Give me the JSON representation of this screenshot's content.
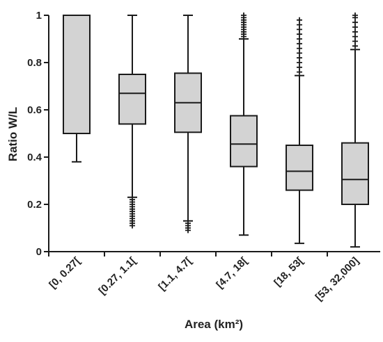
{
  "chart_data": {
    "type": "box",
    "xlabel": "Area (km²)",
    "ylabel": "Ratio W/L",
    "ylim": [
      0,
      1
    ],
    "yticks": [
      "0",
      "0.2",
      "0.4",
      "0.6",
      "0.8",
      "1"
    ],
    "yticks_values": [
      0,
      0.2,
      0.4,
      0.6,
      0.8,
      1
    ],
    "grid": false,
    "legend": "none",
    "box_color": "#d3d3d3",
    "line_color": "#1a1a1a",
    "categories": [
      "[0, 0.27[",
      "[0.27, 1.1[",
      "[1.1, 4.7[",
      "[4.7, 18[",
      "[18, 53[",
      "[53, 32,000]"
    ],
    "boxes": [
      {
        "whisker_low": 0.38,
        "q1": 0.5,
        "median": 1.0,
        "q3": 1.0,
        "whisker_high": 1.0,
        "outliers_low": [],
        "outliers_high": []
      },
      {
        "whisker_low": 0.23,
        "q1": 0.54,
        "median": 0.67,
        "q3": 0.75,
        "whisker_high": 1.0,
        "outliers_low": [
          0.11,
          0.12,
          0.13,
          0.14,
          0.15,
          0.16,
          0.17,
          0.18,
          0.19,
          0.2,
          0.21,
          0.22
        ],
        "outliers_high": []
      },
      {
        "whisker_low": 0.13,
        "q1": 0.505,
        "median": 0.63,
        "q3": 0.755,
        "whisker_high": 1.0,
        "outliers_low": [
          0.09,
          0.1,
          0.11,
          0.12
        ],
        "outliers_high": []
      },
      {
        "whisker_low": 0.07,
        "q1": 0.36,
        "median": 0.455,
        "q3": 0.575,
        "whisker_high": 0.9,
        "outliers_low": [],
        "outliers_high": [
          0.91,
          0.92,
          0.93,
          0.94,
          0.95,
          0.96,
          0.97,
          0.98,
          0.99,
          1.0
        ]
      },
      {
        "whisker_low": 0.035,
        "q1": 0.26,
        "median": 0.34,
        "q3": 0.45,
        "whisker_high": 0.745,
        "outliers_low": [],
        "outliers_high": [
          0.76,
          0.78,
          0.8,
          0.82,
          0.84,
          0.86,
          0.88,
          0.9,
          0.92,
          0.94,
          0.96,
          0.98
        ]
      },
      {
        "whisker_low": 0.02,
        "q1": 0.2,
        "median": 0.305,
        "q3": 0.46,
        "whisker_high": 0.855,
        "outliers_low": [],
        "outliers_high": [
          0.87,
          0.89,
          0.91,
          0.93,
          0.95,
          0.97,
          0.99,
          1.0
        ]
      }
    ]
  }
}
